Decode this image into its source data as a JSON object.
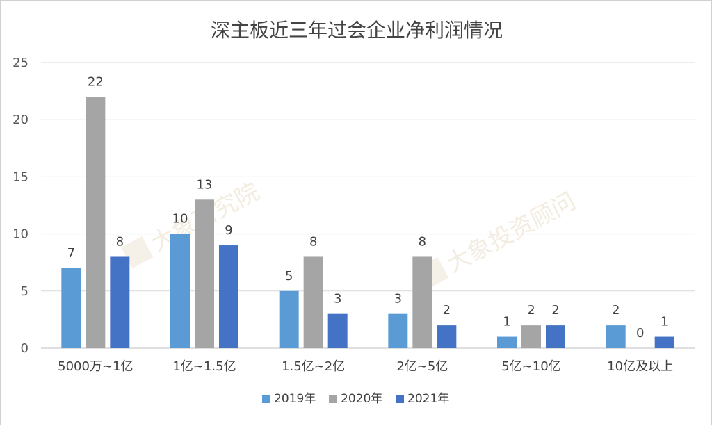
{
  "chart_data": {
    "type": "bar",
    "title": "深主板近三年过会企业净利润情况",
    "categories": [
      "5000万~1亿",
      "1亿~1.5亿",
      "1.5亿~2亿",
      "2亿~5亿",
      "5亿~10亿",
      "10亿及以上"
    ],
    "series": [
      {
        "name": "2019年",
        "color": "#5b9bd5",
        "values": [
          7,
          10,
          5,
          3,
          1,
          2
        ]
      },
      {
        "name": "2020年",
        "color": "#a5a5a5",
        "values": [
          22,
          13,
          8,
          8,
          2,
          0
        ]
      },
      {
        "name": "2021年",
        "color": "#4472c4",
        "values": [
          8,
          9,
          3,
          2,
          2,
          1
        ]
      }
    ],
    "ylim": [
      0,
      25
    ],
    "yticks": [
      0,
      5,
      10,
      15,
      20,
      25
    ],
    "grid": true,
    "legend": "bottom",
    "data_labels": true
  },
  "watermarks": [
    "大象研究院",
    "大象投资顾问"
  ]
}
